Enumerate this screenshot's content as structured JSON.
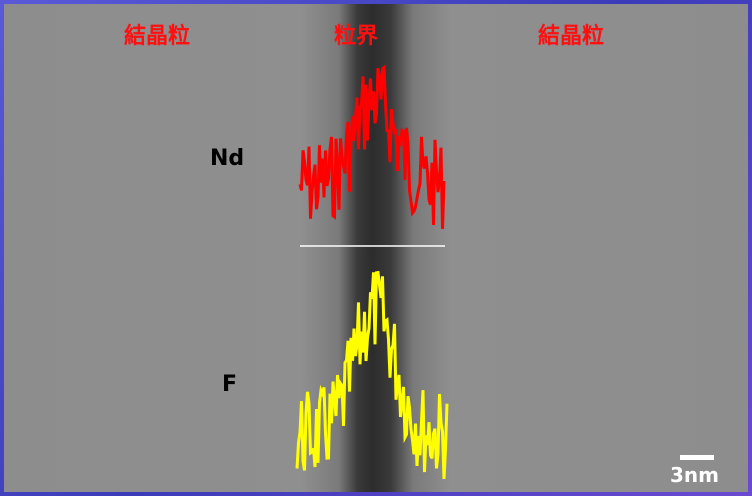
{
  "labels": {
    "grain_left": "結晶粒",
    "boundary": "粒界",
    "grain_right": "結晶粒"
  },
  "profiles": {
    "nd": "Nd",
    "f": "F"
  },
  "scale_bar": "3nm"
}
